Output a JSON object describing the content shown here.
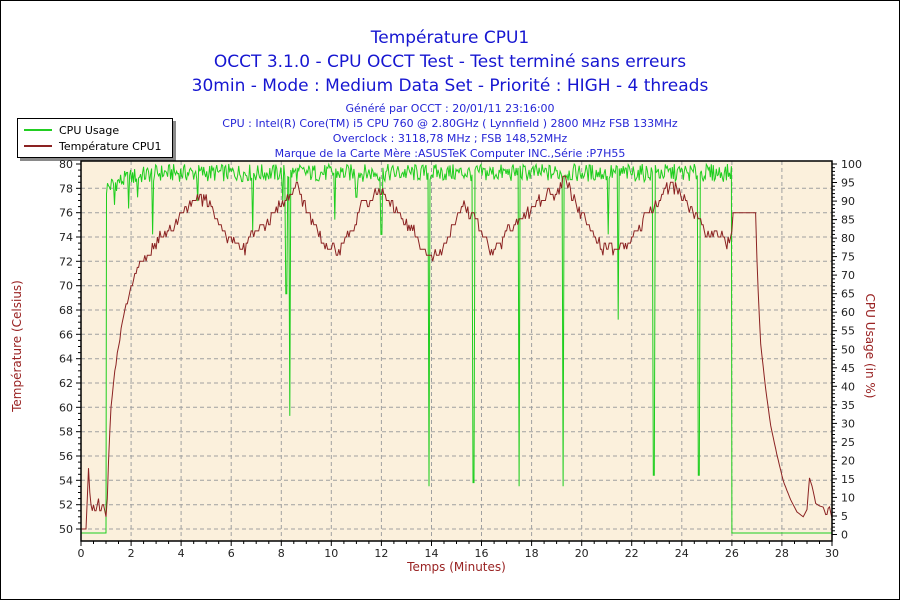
{
  "header": {
    "title": "Température CPU1",
    "subtitle_test": "OCCT 3.1.0 - CPU OCCT Test - Test terminé sans erreurs",
    "subtitle_mode": "30min - Mode : Medium Data Set - Priorité : HIGH - 4 threads",
    "generated": "Généré par OCCT : 20/01/11 23:16:00",
    "cpu": "CPU : Intel(R) Core(TM) i5 CPU 760 @ 2.80GHz ( Lynnfield ) 2800 MHz FSB 133MHz",
    "overclock": "Overclock : 3118,78 MHz ; FSB 148,52MHz",
    "motherboard": "Marque de la Carte Mère :ASUSTeK Computer INC.,Série :P7H55"
  },
  "legend": {
    "items": [
      {
        "label": "CPU Usage",
        "color": "#22ce22"
      },
      {
        "label": "Température CPU1",
        "color": "#8b2222"
      }
    ]
  },
  "colors": {
    "title_blue": "#1616d1",
    "info_blue": "#2525d6",
    "plot_bg": "#fbf0dc",
    "grid": "#a0a0a0",
    "axis_title": "#992222",
    "tick_text": "#222222",
    "cpu_line": "#1ece1e",
    "temp_line": "#8b2222",
    "border": "#000000"
  },
  "chart_data": {
    "type": "line",
    "title": "Température CPU1",
    "xlabel": "Temps (Minutes)",
    "ylabel_left": "Température (Celsius)",
    "ylabel_right": "CPU Usage (in %)",
    "x_range": [
      0,
      30
    ],
    "x_major": 2,
    "x_minor": 0.5,
    "yleft_range": [
      50,
      80
    ],
    "yleft_major": 2,
    "yleft_minor": 0.5,
    "yright_range": [
      0,
      100
    ],
    "yright_major": 5,
    "yright_minor": 1,
    "grid": true,
    "legend_position": "top-left",
    "series": [
      {
        "name": "CPU Usage",
        "axis": "right",
        "unit": "%",
        "color": "#1ece1e",
        "baseline": [
          [
            0,
            0.4
          ],
          [
            1.0,
            0.4
          ],
          [
            1.02,
            93.5
          ],
          [
            1.4,
            95
          ],
          [
            2.2,
            96.8
          ],
          [
            3.2,
            97.6
          ],
          [
            25.98,
            97.6
          ],
          [
            26.0,
            0.4
          ],
          [
            30,
            0.4
          ]
        ],
        "noise": 2.4,
        "dips": [
          [
            1.35,
            89
          ],
          [
            1.9,
            88
          ],
          [
            2.25,
            91
          ],
          [
            2.85,
            81
          ],
          [
            4.65,
            90
          ],
          [
            6.85,
            82
          ],
          [
            8.05,
            90
          ],
          [
            8.2,
            65
          ],
          [
            8.35,
            32
          ],
          [
            10.15,
            85
          ],
          [
            11.0,
            91
          ],
          [
            12.0,
            81
          ],
          [
            13.9,
            13
          ],
          [
            15.68,
            14
          ],
          [
            17.5,
            13
          ],
          [
            19.27,
            13
          ],
          [
            21.05,
            81
          ],
          [
            21.45,
            58
          ],
          [
            22.88,
            16
          ],
          [
            24.68,
            16
          ]
        ]
      },
      {
        "name": "Température CPU1",
        "axis": "left",
        "unit": "°C",
        "color": "#8b2222",
        "points": [
          [
            0,
            50
          ],
          [
            0.22,
            50
          ],
          [
            0.26,
            53.5
          ],
          [
            0.3,
            55
          ],
          [
            0.33,
            53.5
          ],
          [
            0.38,
            52.3
          ],
          [
            0.45,
            51.3
          ],
          [
            0.52,
            52.2
          ],
          [
            0.6,
            51.3
          ],
          [
            0.68,
            52.4
          ],
          [
            0.78,
            51.4
          ],
          [
            0.88,
            52.2
          ],
          [
            0.97,
            51.2
          ],
          [
            1.03,
            51.1
          ],
          [
            1.08,
            54.5
          ],
          [
            1.18,
            59.5
          ],
          [
            1.3,
            62
          ],
          [
            1.45,
            64.5
          ],
          [
            1.62,
            66.5
          ],
          [
            1.82,
            68.5
          ],
          [
            2.02,
            70
          ],
          [
            2.22,
            71.3
          ],
          [
            2.42,
            72
          ],
          [
            2.65,
            72.6
          ],
          [
            2.9,
            73.2
          ],
          [
            3.1,
            74
          ],
          [
            3.5,
            74.3
          ],
          [
            3.8,
            75.2
          ],
          [
            4.1,
            76
          ],
          [
            4.4,
            76.8
          ],
          [
            4.7,
            77.2
          ],
          [
            5.0,
            77
          ],
          [
            5.2,
            76.4
          ],
          [
            5.45,
            75.3
          ],
          [
            5.7,
            74.3
          ],
          [
            5.95,
            73.8
          ],
          [
            6.25,
            73.4
          ],
          [
            6.55,
            72.9
          ],
          [
            6.8,
            74.2
          ],
          [
            7.05,
            74.6
          ],
          [
            7.3,
            74.8
          ],
          [
            7.55,
            75.6
          ],
          [
            7.75,
            76.3
          ],
          [
            8.0,
            76.9
          ],
          [
            8.25,
            77.2
          ],
          [
            8.5,
            77.7
          ],
          [
            8.62,
            78.2
          ],
          [
            8.78,
            77.4
          ],
          [
            8.98,
            76.4
          ],
          [
            9.18,
            75.4
          ],
          [
            9.38,
            74.6
          ],
          [
            9.6,
            74
          ],
          [
            9.85,
            73.2
          ],
          [
            10.1,
            72.9
          ],
          [
            10.4,
            73.1
          ],
          [
            10.62,
            73.9
          ],
          [
            10.82,
            74.6
          ],
          [
            11.02,
            75.5
          ],
          [
            11.22,
            76.6
          ],
          [
            11.5,
            77
          ],
          [
            11.82,
            77.9
          ],
          [
            12.1,
            77.6
          ],
          [
            12.35,
            76.7
          ],
          [
            12.6,
            76.1
          ],
          [
            12.85,
            75.7
          ],
          [
            13.05,
            74.8
          ],
          [
            13.3,
            74.4
          ],
          [
            13.6,
            73.3
          ],
          [
            13.9,
            72.7
          ],
          [
            14.2,
            72.5
          ],
          [
            14.45,
            73.1
          ],
          [
            14.7,
            74
          ],
          [
            14.9,
            75.1
          ],
          [
            15.1,
            75.9
          ],
          [
            15.3,
            76.7
          ],
          [
            15.55,
            75.9
          ],
          [
            15.78,
            75.2
          ],
          [
            16.0,
            74.3
          ],
          [
            16.2,
            73.6
          ],
          [
            16.4,
            72.8
          ],
          [
            16.6,
            73.4
          ],
          [
            16.82,
            73.6
          ],
          [
            17.02,
            74.6
          ],
          [
            17.25,
            75
          ],
          [
            17.5,
            75.3
          ],
          [
            17.75,
            75.9
          ],
          [
            18.0,
            76.2
          ],
          [
            18.25,
            76.9
          ],
          [
            18.5,
            77.4
          ],
          [
            18.72,
            77.9
          ],
          [
            18.9,
            77.2
          ],
          [
            19.1,
            78
          ],
          [
            19.32,
            78.9
          ],
          [
            19.52,
            78
          ],
          [
            19.72,
            77
          ],
          [
            19.92,
            76.2
          ],
          [
            20.12,
            75.3
          ],
          [
            20.32,
            74.5
          ],
          [
            20.58,
            73.8
          ],
          [
            20.85,
            73.1
          ],
          [
            21.15,
            72.9
          ],
          [
            21.5,
            73.2
          ],
          [
            21.9,
            73.4
          ],
          [
            22.1,
            74.2
          ],
          [
            22.32,
            74.9
          ],
          [
            22.55,
            75.6
          ],
          [
            22.8,
            76.1
          ],
          [
            23.0,
            76.5
          ],
          [
            23.2,
            77.3
          ],
          [
            23.45,
            78.1
          ],
          [
            23.75,
            78
          ],
          [
            24.0,
            77.4
          ],
          [
            24.2,
            76.7
          ],
          [
            24.45,
            76
          ],
          [
            24.7,
            75.1
          ],
          [
            24.95,
            74.4
          ],
          [
            25.3,
            74.2
          ],
          [
            25.6,
            74
          ],
          [
            25.88,
            73.4
          ],
          [
            26.0,
            74.3
          ],
          [
            26.05,
            76
          ],
          [
            26.95,
            76
          ],
          [
            27.02,
            70.8
          ],
          [
            27.15,
            65.2
          ],
          [
            27.35,
            61.5
          ],
          [
            27.55,
            58.5
          ],
          [
            27.8,
            56.1
          ],
          [
            28.06,
            53.9
          ],
          [
            28.35,
            52.4
          ],
          [
            28.6,
            51.4
          ],
          [
            28.85,
            51
          ],
          [
            29.0,
            51.6
          ],
          [
            29.1,
            54.2
          ],
          [
            29.22,
            53.4
          ],
          [
            29.35,
            52.1
          ],
          [
            29.5,
            51.9
          ],
          [
            29.65,
            51.8
          ],
          [
            29.78,
            51
          ],
          [
            29.88,
            52
          ],
          [
            30,
            50.9
          ]
        ],
        "noise": 0.45,
        "noise_ranges": [
          [
            0.3,
            1.0,
            0.35
          ],
          [
            2.45,
            25.9,
            0.45
          ]
        ]
      }
    ]
  }
}
